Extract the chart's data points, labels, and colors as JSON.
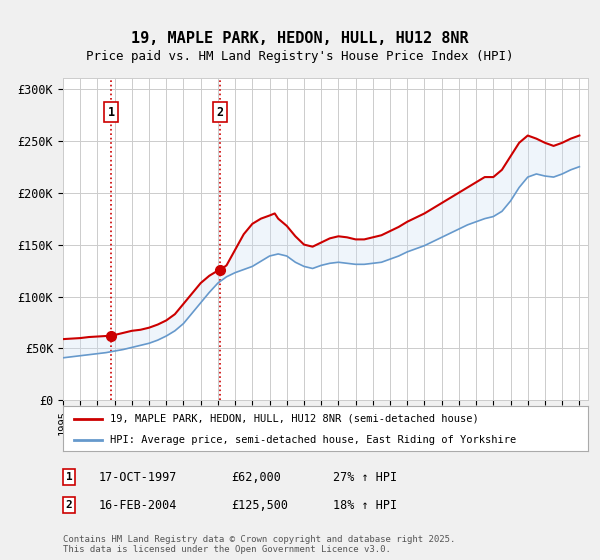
{
  "title_line1": "19, MAPLE PARK, HEDON, HULL, HU12 8NR",
  "title_line2": "Price paid vs. HM Land Registry's House Price Index (HPI)",
  "ylim": [
    0,
    310000
  ],
  "yticks": [
    0,
    50000,
    100000,
    150000,
    200000,
    250000,
    300000
  ],
  "ytick_labels": [
    "£0",
    "£50K",
    "£100K",
    "£150K",
    "£200K",
    "£250K",
    "£300K"
  ],
  "bg_color": "#f0f0f0",
  "plot_bg_color": "#ffffff",
  "sale1_date": 1997.8,
  "sale1_price": 62000,
  "sale1_label": "1",
  "sale2_date": 2004.12,
  "sale2_price": 125500,
  "sale2_label": "2",
  "legend_line1": "19, MAPLE PARK, HEDON, HULL, HU12 8NR (semi-detached house)",
  "legend_line2": "HPI: Average price, semi-detached house, East Riding of Yorkshire",
  "table_rows": [
    [
      "1",
      "17-OCT-1997",
      "£62,000",
      "27% ↑ HPI"
    ],
    [
      "2",
      "16-FEB-2004",
      "£125,500",
      "18% ↑ HPI"
    ]
  ],
  "footer": "Contains HM Land Registry data © Crown copyright and database right 2025.\nThis data is licensed under the Open Government Licence v3.0.",
  "line_color_red": "#cc0000",
  "line_color_blue": "#6699cc",
  "shade_color": "#cce0f5",
  "dashed_color": "#cc0000",
  "xlim": [
    1995.0,
    2025.5
  ]
}
